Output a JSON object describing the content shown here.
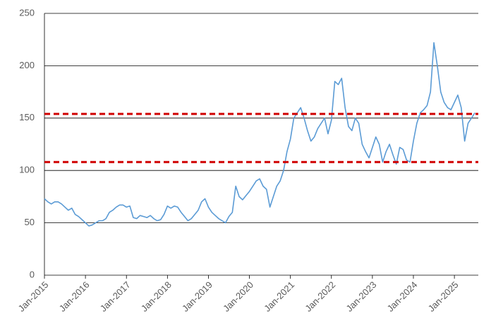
{
  "chart_data": {
    "type": "line",
    "x": [
      "2015-01",
      "2015-02",
      "2015-03",
      "2015-04",
      "2015-05",
      "2015-06",
      "2015-07",
      "2015-08",
      "2015-09",
      "2015-10",
      "2015-11",
      "2015-12",
      "2016-01",
      "2016-02",
      "2016-03",
      "2016-04",
      "2016-05",
      "2016-06",
      "2016-07",
      "2016-08",
      "2016-09",
      "2016-10",
      "2016-11",
      "2016-12",
      "2017-01",
      "2017-02",
      "2017-03",
      "2017-04",
      "2017-05",
      "2017-06",
      "2017-07",
      "2017-08",
      "2017-09",
      "2017-10",
      "2017-11",
      "2017-12",
      "2018-01",
      "2018-02",
      "2018-03",
      "2018-04",
      "2018-05",
      "2018-06",
      "2018-07",
      "2018-08",
      "2018-09",
      "2018-10",
      "2018-11",
      "2018-12",
      "2019-01",
      "2019-02",
      "2019-03",
      "2019-04",
      "2019-05",
      "2019-06",
      "2019-07",
      "2019-08",
      "2019-09",
      "2019-10",
      "2019-11",
      "2019-12",
      "2020-01",
      "2020-02",
      "2020-03",
      "2020-04",
      "2020-05",
      "2020-06",
      "2020-07",
      "2020-08",
      "2020-09",
      "2020-10",
      "2020-11",
      "2020-12",
      "2021-01",
      "2021-02",
      "2021-03",
      "2021-04",
      "2021-05",
      "2021-06",
      "2021-07",
      "2021-08",
      "2021-09",
      "2021-10",
      "2021-11",
      "2021-12",
      "2022-01",
      "2022-02",
      "2022-03",
      "2022-04",
      "2022-05",
      "2022-06",
      "2022-07",
      "2022-08",
      "2022-09",
      "2022-10",
      "2022-11",
      "2022-12",
      "2023-01",
      "2023-02",
      "2023-03",
      "2023-04",
      "2023-05",
      "2023-06",
      "2023-07",
      "2023-08",
      "2023-09",
      "2023-10",
      "2023-11",
      "2023-12",
      "2024-01",
      "2024-02",
      "2024-03",
      "2024-04",
      "2024-05",
      "2024-06",
      "2024-07",
      "2024-08",
      "2024-09",
      "2024-10",
      "2024-11",
      "2024-12",
      "2025-01",
      "2025-02",
      "2025-03",
      "2025-04",
      "2025-05",
      "2025-06",
      "2025-07"
    ],
    "series": [
      {
        "color": "#5b9bd5",
        "values": [
          73,
          70,
          68,
          70,
          70,
          68,
          65,
          62,
          64,
          58,
          56,
          53,
          50,
          47,
          48,
          50,
          52,
          52,
          54,
          60,
          62,
          65,
          67,
          67,
          65,
          66,
          55,
          54,
          57,
          56,
          55,
          57,
          54,
          52,
          53,
          58,
          66,
          64,
          66,
          65,
          60,
          56,
          52,
          54,
          58,
          62,
          70,
          73,
          65,
          60,
          57,
          54,
          52,
          50,
          56,
          60,
          85,
          75,
          72,
          76,
          80,
          85,
          90,
          92,
          85,
          82,
          65,
          75,
          85,
          90,
          100,
          118,
          130,
          150,
          155,
          160,
          150,
          138,
          128,
          132,
          140,
          145,
          150,
          135,
          148,
          185,
          182,
          188,
          160,
          142,
          138,
          150,
          145,
          125,
          118,
          112,
          122,
          132,
          125,
          108,
          118,
          125,
          115,
          106,
          122,
          120,
          110,
          108,
          128,
          145,
          155,
          158,
          162,
          175,
          222,
          200,
          175,
          165,
          160,
          158,
          165,
          172,
          160,
          128,
          145,
          150,
          155
        ]
      }
    ],
    "reference_lines": [
      {
        "value": 154,
        "color": "#d00000"
      },
      {
        "value": 108,
        "color": "#d00000"
      }
    ],
    "xlim": [
      "2015-01",
      "2025-08"
    ],
    "xticks": [
      {
        "value": "2015-01",
        "label": "Jan-2015"
      },
      {
        "value": "2016-01",
        "label": "Jan-2016"
      },
      {
        "value": "2017-01",
        "label": "Jan-2017"
      },
      {
        "value": "2018-01",
        "label": "Jan-2018"
      },
      {
        "value": "2019-01",
        "label": "Jan-2019"
      },
      {
        "value": "2020-01",
        "label": "Jan-2020"
      },
      {
        "value": "2021-01",
        "label": "Jan-2021"
      },
      {
        "value": "2022-01",
        "label": "Jan-2022"
      },
      {
        "value": "2023-01",
        "label": "Jan-2023"
      },
      {
        "value": "2024-01",
        "label": "Jan-2024"
      },
      {
        "value": "2025-01",
        "label": "Jan-2025"
      }
    ],
    "ylim": [
      0,
      250
    ],
    "yticks": [
      0,
      50,
      100,
      150,
      200,
      250
    ],
    "grid": true
  }
}
